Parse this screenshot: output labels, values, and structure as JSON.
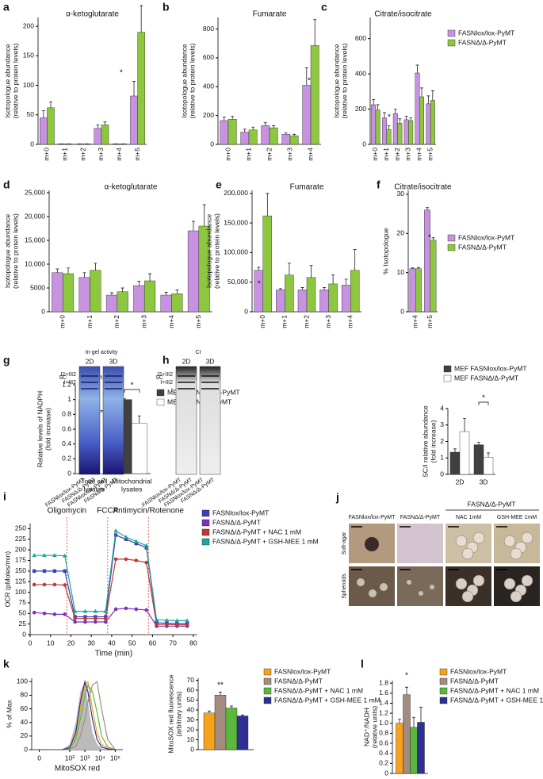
{
  "chart_data": [
    {
      "type": "bar",
      "panel": "a",
      "title": "α-ketoglutarate",
      "y_label": [
        "Isotopologue abundance",
        "(relative to protein levels)"
      ],
      "categories": [
        "m+0",
        "m+1",
        "m+2",
        "m+3",
        "m+4",
        "m+5"
      ],
      "series": [
        {
          "name": "FASNlox/lox-PyMT",
          "color": "#c792df",
          "values": [
            45,
            1,
            1,
            27,
            1,
            82
          ],
          "errors": [
            12,
            0,
            0,
            6,
            0,
            25
          ]
        },
        {
          "name": "FASNΔ/Δ-PyMT",
          "color": "#8dc63f",
          "values": [
            62,
            1,
            1,
            33,
            1,
            190
          ],
          "errors": [
            10,
            0,
            0,
            5,
            0,
            45
          ]
        }
      ],
      "ylim": [
        0,
        215
      ],
      "yticks": [
        0,
        50,
        100,
        150,
        200
      ],
      "annotations": [
        "*"
      ]
    },
    {
      "type": "bar",
      "panel": "b",
      "title": "Fumarate",
      "y_label": [
        "Isotopologue abundance",
        "(relative to protein levels)"
      ],
      "categories": [
        "m+0",
        "m+1",
        "m+2",
        "m+3",
        "m+4"
      ],
      "series": [
        {
          "name": "FASNlox/lox-PyMT",
          "color": "#c792df",
          "values": [
            165,
            85,
            130,
            70,
            410
          ],
          "errors": [
            25,
            20,
            20,
            10,
            120
          ]
        },
        {
          "name": "FASNΔ/Δ-PyMT",
          "color": "#8dc63f",
          "values": [
            175,
            100,
            115,
            60,
            685
          ],
          "errors": [
            20,
            20,
            15,
            10,
            180
          ]
        }
      ],
      "ylim": [
        0,
        880
      ],
      "yticks": [
        0,
        200,
        400,
        600,
        800
      ],
      "annotations": [
        "*"
      ]
    },
    {
      "type": "bar",
      "panel": "c",
      "title": "Citrate/isocitrate",
      "y_label": [
        "Isotopologue abundance",
        "(relative to protein levels)"
      ],
      "categories": [
        "m+0",
        "m+1",
        "m+2",
        "m+3",
        "m+4",
        "m+5"
      ],
      "series": [
        {
          "name": "FASNlox/lox-PyMT",
          "color": "#c792df",
          "values": [
            225,
            150,
            175,
            140,
            405,
            230
          ],
          "errors": [
            30,
            30,
            25,
            20,
            45,
            45
          ]
        },
        {
          "name": "FASNΔ/Δ-PyMT",
          "color": "#8dc63f",
          "values": [
            195,
            85,
            120,
            135,
            270,
            250
          ],
          "errors": [
            30,
            20,
            25,
            15,
            50,
            55
          ]
        }
      ],
      "ylim": [
        0,
        720
      ],
      "yticks": [
        0,
        200,
        400,
        600
      ],
      "legend": true,
      "annotations": [
        "*"
      ]
    },
    {
      "type": "bar",
      "panel": "d",
      "title": "α-ketoglutarate",
      "y_label": [
        "Isotopologue abundance",
        "(relative to protein levels)"
      ],
      "categories": [
        "m+0",
        "m+1",
        "m+2",
        "m+3",
        "m+4",
        "m+5"
      ],
      "series": [
        {
          "name": "FASNlox/lox-PyMT",
          "color": "#c792df",
          "values": [
            8200,
            7200,
            3500,
            5500,
            3500,
            17000
          ],
          "errors": [
            800,
            1000,
            500,
            900,
            600,
            2000
          ]
        },
        {
          "name": "FASNΔ/Δ-PyMT",
          "color": "#8dc63f",
          "values": [
            8000,
            8700,
            4200,
            6500,
            3800,
            18000
          ],
          "errors": [
            1200,
            1500,
            800,
            1500,
            800,
            4500
          ]
        }
      ],
      "ylim": [
        0,
        25500
      ],
      "yticks": [
        0,
        5000,
        {
          "value": 10000,
          "label": "10,000"
        },
        {
          "value": 15000,
          "label": "15,000"
        },
        {
          "value": 20000,
          "label": "20,000"
        },
        {
          "value": 25000,
          "label": "25,000"
        }
      ]
    },
    {
      "type": "bar",
      "panel": "e",
      "title": "Fumarate",
      "y_label": [
        "Isotopologue abundance",
        "(relative to protein levels)"
      ],
      "categories": [
        "m+0",
        "m+1",
        "m+2",
        "m+3",
        "m+4"
      ],
      "series": [
        {
          "name": "FASNlox/lox-PyMT",
          "color": "#c792df",
          "values": [
            70000,
            37000,
            37000,
            37000,
            45000
          ],
          "errors": [
            5000,
            2000,
            4000,
            4000,
            10000
          ]
        },
        {
          "name": "FASNΔ/Δ-PyMT",
          "color": "#8dc63f",
          "values": [
            162000,
            62000,
            58000,
            47000,
            70000
          ],
          "errors": [
            38000,
            20000,
            20000,
            15000,
            35000
          ]
        }
      ],
      "ylim": [
        0,
        205000
      ],
      "yticks": [
        0,
        {
          "value": 50000,
          "label": "50,000"
        },
        {
          "value": 100000,
          "label": "100,000"
        },
        {
          "value": 150000,
          "label": "150,000"
        },
        {
          "value": 200000,
          "label": "200,000"
        }
      ],
      "annotations": [
        "*"
      ]
    },
    {
      "type": "bar",
      "panel": "f",
      "title": "Citrate/isocitrate",
      "y_label": [
        "% Isotopologue"
      ],
      "categories": [
        "m+4",
        "m+5"
      ],
      "series": [
        {
          "name": "FASNlox/lox-PyMT",
          "color": "#c792df",
          "values": [
            11,
            26
          ],
          "errors": [
            0.2,
            0.6
          ]
        },
        {
          "name": "FASNΔ/Δ-PyMT",
          "color": "#8dc63f",
          "values": [
            11,
            18.3
          ],
          "errors": [
            0.3,
            0.6
          ]
        }
      ],
      "ylim": [
        0,
        31
      ],
      "yticks": [
        0,
        10,
        20,
        30
      ],
      "legend": true,
      "annotations": [
        "*"
      ]
    },
    {
      "type": "bar",
      "panel": "g",
      "y_label": [
        "Relative levels of NADPH",
        "(fold increase)"
      ],
      "categories": [
        [
          "Total cell",
          "lysates"
        ],
        [
          "Mitochondrial",
          "lysates"
        ]
      ],
      "series": [
        {
          "name": "MEF FASNlox/lox-PyMT",
          "color": "#404040",
          "values": [
            1,
            1
          ],
          "errors": [
            0.01,
            0.01
          ]
        },
        {
          "name": "MEF FASNΔ/Δ-PyMT",
          "color": "#ffffff",
          "values": [
            0.83,
            0.68
          ],
          "errors": [
            0.02,
            0.1
          ]
        }
      ],
      "ylim": [
        0,
        1.2
      ],
      "yticks": [
        0,
        0.2,
        0.4,
        0.6,
        0.8,
        1,
        1.2
      ],
      "legend": true,
      "annotations": [
        "***",
        "*"
      ]
    },
    {
      "type": "bar",
      "y_label": [
        "SC/I relative abundance",
        "(fold increase)"
      ],
      "categories": [
        "2D",
        "3D"
      ],
      "series": [
        {
          "name": "MEF FASNlox/lox-PyMT",
          "color": "#404040",
          "values": [
            1.35,
            1.8
          ],
          "errors": [
            0.2,
            0.15
          ]
        },
        {
          "name": "MEF FASNΔ/Δ-PyMT",
          "color": "#ffffff",
          "values": [
            2.6,
            1.05
          ],
          "errors": [
            0.8,
            0.25
          ]
        }
      ],
      "ylim": [
        0,
        4
      ],
      "yticks": [
        0,
        1,
        2,
        3,
        4
      ],
      "legend": true,
      "annotations": [
        "*"
      ]
    },
    {
      "type": "line",
      "panel": "i",
      "y_label": [
        "OCR (pMoles/min)"
      ],
      "x_label": "Time (min)",
      "x": [
        2,
        7,
        12,
        17,
        22,
        27,
        32,
        37,
        42,
        47,
        52,
        57,
        62,
        67,
        72,
        77
      ],
      "series": [
        {
          "name": "FASNlox/lox-PyMT",
          "color": "#3d3dbf",
          "marker": "square",
          "values": [
            150,
            150,
            150,
            150,
            42,
            42,
            42,
            42,
            235,
            225,
            215,
            205,
            28,
            27,
            26,
            26
          ]
        },
        {
          "name": "FASNΔ/Δ-PyMT",
          "color": "#7f2fbf",
          "marker": "circle",
          "values": [
            52,
            50,
            48,
            48,
            30,
            30,
            30,
            30,
            60,
            62,
            60,
            58,
            20,
            20,
            20,
            20
          ]
        },
        {
          "name": "FASNΔ/Δ-PyMT + NAC 1 mM",
          "color": "#c0392b",
          "marker": "circle",
          "values": [
            118,
            118,
            118,
            117,
            38,
            38,
            38,
            38,
            178,
            178,
            175,
            170,
            24,
            24,
            23,
            23
          ]
        },
        {
          "name": "FASNΔ/Δ-PyMT + GSH-MEE 1 mM",
          "color": "#1fa59a",
          "marker": "triangle",
          "values": [
            187,
            187,
            187,
            186,
            55,
            55,
            55,
            55,
            245,
            230,
            220,
            210,
            35,
            34,
            33,
            33
          ]
        }
      ],
      "events": [
        {
          "x": 18,
          "label": "Oligomycin"
        },
        {
          "x": 38,
          "label": "FCCP"
        },
        {
          "x": 58,
          "label": "Antimycin/Rotenone"
        }
      ],
      "xlim": [
        0,
        82
      ],
      "xticks": [
        0,
        10,
        20,
        30,
        40,
        50,
        60,
        70,
        80
      ],
      "ylim": [
        0,
        262
      ],
      "yticks": [
        0,
        25,
        50,
        75,
        100,
        125,
        150,
        175,
        200,
        225,
        250
      ],
      "legend": true
    },
    {
      "type": "line",
      "panel": "k",
      "y_label": [
        "% of Max"
      ],
      "x_label": "MitoSOX red",
      "x": [
        1.5,
        2,
        2.4,
        2.7,
        3,
        3.2,
        3.5,
        3.8,
        4.1,
        4.5,
        5
      ],
      "series": [
        {
          "color": "#bbbbbb",
          "fill": true,
          "values": [
            0,
            8,
            40,
            85,
            100,
            70,
            25,
            8,
            2,
            0,
            0
          ]
        },
        {
          "color": "#f7a21b",
          "values": [
            0,
            3,
            20,
            60,
            95,
            100,
            60,
            25,
            8,
            2,
            0
          ]
        },
        {
          "color": "#a38b80",
          "values": [
            0,
            1,
            5,
            20,
            45,
            70,
            95,
            100,
            60,
            15,
            0
          ]
        },
        {
          "color": "#5cb83d",
          "values": [
            0,
            2,
            15,
            45,
            80,
            95,
            85,
            55,
            20,
            4,
            0
          ]
        },
        {
          "color": "#2e3192",
          "values": [
            0,
            3,
            25,
            70,
            100,
            85,
            45,
            15,
            4,
            1,
            0
          ]
        }
      ],
      "xlim": [
        -0.5,
        5.5
      ],
      "xticks": [
        0,
        {
          "value": 2,
          "label": "10²"
        },
        {
          "value": 3,
          "label": "10³"
        },
        {
          "value": 4,
          "label": "10⁴"
        },
        {
          "value": 5,
          "label": "10⁵"
        }
      ],
      "ylim": [
        0,
        105
      ],
      "yticks": [
        0,
        20,
        40,
        60,
        80,
        100
      ]
    },
    {
      "type": "bar",
      "y_label": [
        "MitoSOX red fluorescence",
        "(arbitrary units)"
      ],
      "categories": [
        null
      ],
      "series": [
        {
          "name": "FASNlox/lox-PyMT",
          "color": "#f7a21b",
          "values": [
            37
          ],
          "errors": [
            2
          ]
        },
        {
          "name": "FASNΔ/Δ-PyMT",
          "color": "#a38b80",
          "values": [
            55
          ],
          "errors": [
            3
          ]
        },
        {
          "name": "FASNΔ/Δ-PyMT + NAC 1 mM",
          "color": "#5cb83d",
          "values": [
            42
          ],
          "errors": [
            2
          ]
        },
        {
          "name": "FASNΔ/Δ-PyMT + GSH-MEE 1 mM",
          "color": "#2e3192",
          "values": [
            34
          ],
          "errors": [
            1
          ]
        }
      ],
      "ylim": [
        0,
        72
      ],
      "yticks": [
        0,
        10,
        20,
        30,
        40,
        50,
        60,
        70
      ],
      "legend": true,
      "annotations": [
        "**"
      ]
    },
    {
      "type": "bar",
      "panel": "l",
      "y_label": [
        "NAD⁺/NADH",
        "(relative units)"
      ],
      "categories": [
        null
      ],
      "series": [
        {
          "name": "FASNlox/lox-PyMT",
          "color": "#f7a21b",
          "values": [
            1.0
          ],
          "errors": [
            0.08
          ]
        },
        {
          "name": "FASNΔ/Δ-PyMT",
          "color": "#a38b80",
          "values": [
            1.57
          ],
          "errors": [
            0.15
          ]
        },
        {
          "name": "FASNΔ/Δ-PyMT + NAC 1 mM",
          "color": "#5cb83d",
          "values": [
            0.92
          ],
          "errors": [
            0.2
          ]
        },
        {
          "name": "FASNΔ/Δ-PyMT + GSH-MEE 1 mM",
          "color": "#2e3192",
          "values": [
            1.02
          ],
          "errors": [
            0.3
          ]
        }
      ],
      "ylim": [
        0,
        1.85
      ],
      "yticks": [
        0,
        0.2,
        0.4,
        0.6,
        0.8,
        {
          "value": 1,
          "label": "1.0"
        },
        1.2,
        1.4,
        1.6,
        1.8
      ],
      "legend": true,
      "annotations": [
        "*"
      ]
    }
  ],
  "figure_h": {
    "panel": "h",
    "gels": [
      {
        "title": "In-gel activity",
        "lanes": [
          "2D",
          "3D"
        ],
        "bands": [
          "SC",
          "I2+III2",
          "I+III2",
          "I"
        ],
        "samples": [
          "FASNlox/lox-PyMT",
          "FASNΔ/Δ-PyMT",
          "FASNlox/lox-PyMT",
          "FASNΔ/Δ-PyMT"
        ]
      },
      {
        "title": "CI",
        "lanes": [
          "2D",
          "3D"
        ],
        "bands": [
          "SC",
          "I2+III2",
          "I+III2",
          "I"
        ],
        "samples": [
          "FASNlox/lox-PyMT",
          "FASNΔ/Δ-PyMT",
          "FASNlox/lox-PyMT",
          "FASNΔ/Δ-PyMT"
        ]
      }
    ]
  },
  "figure_j": {
    "panel": "j",
    "columns": [
      "FASNlox/lox-PyMT",
      "FASNΔ/Δ-PyMT",
      "NAC 1mM",
      "GSH-MEE 1mM"
    ],
    "group": "FASNΔ/Δ-PyMT",
    "rows": [
      "Soft-agar",
      "Spheroids"
    ]
  }
}
